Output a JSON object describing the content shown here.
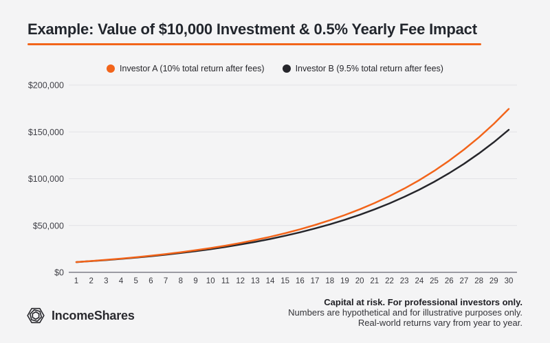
{
  "page": {
    "background": "#F4F4F5",
    "accent_orange": "#F2641A",
    "dark": "#26262B"
  },
  "header": {
    "title": "Example: Value of $10,000 Investment & 0.5% Yearly Fee Impact"
  },
  "legend": [
    {
      "label": "Investor A (10% total return after fees)",
      "color": "#F2641A"
    },
    {
      "label": "Investor B (9.5% total return after fees)",
      "color": "#26262B"
    }
  ],
  "chart_data": {
    "type": "line",
    "title": "Example: Value of $10,000 Investment & 0.5% Yearly Fee Impact",
    "xlabel": "",
    "ylabel": "",
    "x": [
      1,
      2,
      3,
      4,
      5,
      6,
      7,
      8,
      9,
      10,
      11,
      12,
      13,
      14,
      15,
      16,
      17,
      18,
      19,
      20,
      21,
      22,
      23,
      24,
      25,
      26,
      27,
      28,
      29,
      30
    ],
    "ylim": [
      0,
      200000
    ],
    "yticks": [
      {
        "value": 0,
        "label": "$0"
      },
      {
        "value": 50000,
        "label": "$50,000"
      },
      {
        "value": 100000,
        "label": "$100,000"
      },
      {
        "value": 150000,
        "label": "$150,000"
      },
      {
        "value": 200000,
        "label": "$200,000"
      }
    ],
    "grid": "horizontal",
    "legend_position": "top-center",
    "series": [
      {
        "name": "Investor A (10% total return after fees)",
        "color": "#F2641A",
        "values": [
          11000,
          12100,
          13310,
          14641,
          16105,
          17716,
          19487,
          21436,
          23579,
          25937,
          28531,
          31384,
          34523,
          37975,
          41772,
          45950,
          50545,
          55599,
          61159,
          67275,
          74003,
          81403,
          89543,
          98497,
          108347,
          119182,
          131100,
          144210,
          158631,
          174494
        ]
      },
      {
        "name": "Investor B (9.5% total return after fees)",
        "color": "#26262B",
        "values": [
          10950,
          11990,
          13129,
          14377,
          15742,
          17238,
          18876,
          20669,
          22632,
          24782,
          27137,
          29715,
          32537,
          35629,
          39013,
          42719,
          46778,
          51222,
          56088,
          61416,
          67251,
          73639,
          80635,
          88296,
          96684,
          105869,
          115926,
          126939,
          138998,
          152203
        ]
      }
    ]
  },
  "footer": {
    "brand": "IncomeShares",
    "disclaimer_bold": "Capital at risk. For professional investors only.",
    "disclaimer_line2": "Numbers are hypothetical and for illustrative purposes only.",
    "disclaimer_line3": "Real-world returns vary from year to year."
  }
}
